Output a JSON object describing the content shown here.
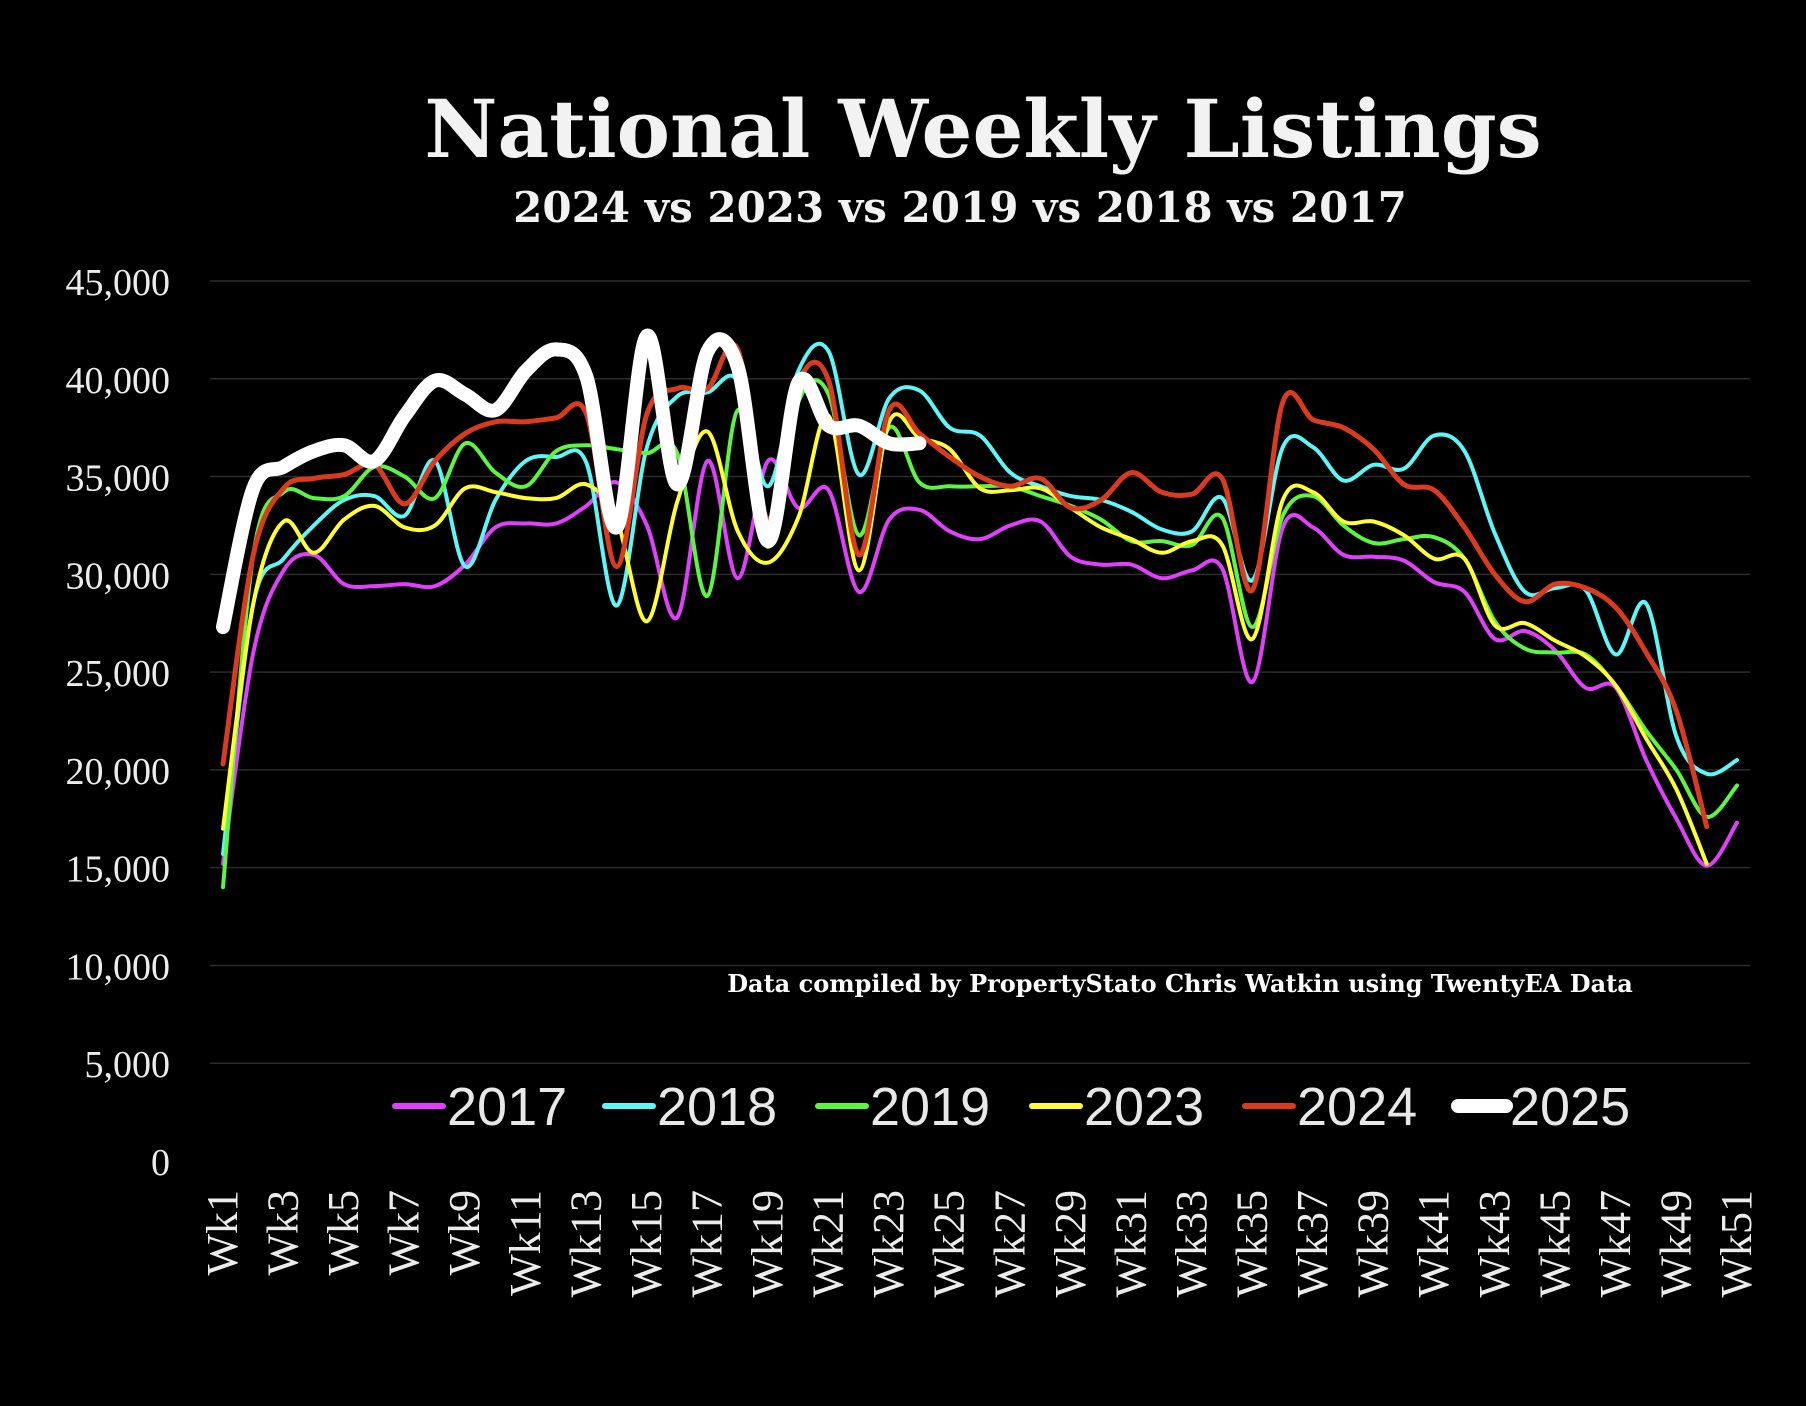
{
  "chart_data": {
    "type": "line",
    "title": "National Weekly Listings",
    "subtitle": "2024 vs 2023 vs 2019 vs 2018 vs 2017",
    "annotation": "Data compiled by PropertyStato Chris Watkin using TwentyEA Data",
    "xlabel": "",
    "ylabel": "",
    "ylim": [
      0,
      45000
    ],
    "yticks": [
      0,
      5000,
      10000,
      15000,
      20000,
      25000,
      30000,
      35000,
      40000,
      45000
    ],
    "ytick_labels": [
      "0",
      "5,000",
      "10,000",
      "15,000",
      "20,000",
      "25,000",
      "30,000",
      "35,000",
      "40,000",
      "45,000"
    ],
    "grid": true,
    "legend": "bottom",
    "background": "#000000",
    "x_tick_labels": [
      "Wk1",
      "Wk3",
      "Wk5",
      "Wk7",
      "Wk9",
      "Wk11",
      "Wk13",
      "Wk15",
      "Wk17",
      "Wk19",
      "Wk21",
      "Wk23",
      "Wk25",
      "Wk27",
      "Wk29",
      "Wk31",
      "Wk33",
      "Wk35",
      "Wk37",
      "Wk39",
      "Wk41",
      "Wk43",
      "Wk45",
      "Wk47",
      "Wk49",
      "Wk51"
    ],
    "categories": [
      "Wk1",
      "Wk2",
      "Wk3",
      "Wk4",
      "Wk5",
      "Wk6",
      "Wk7",
      "Wk8",
      "Wk9",
      "Wk10",
      "Wk11",
      "Wk12",
      "Wk13",
      "Wk14",
      "Wk15",
      "Wk16",
      "Wk17",
      "Wk18",
      "Wk19",
      "Wk20",
      "Wk21",
      "Wk22",
      "Wk23",
      "Wk24",
      "Wk25",
      "Wk26",
      "Wk27",
      "Wk28",
      "Wk29",
      "Wk30",
      "Wk31",
      "Wk32",
      "Wk33",
      "Wk34",
      "Wk35",
      "Wk36",
      "Wk37",
      "Wk38",
      "Wk39",
      "Wk40",
      "Wk41",
      "Wk42",
      "Wk43",
      "Wk44",
      "Wk45",
      "Wk46",
      "Wk47",
      "Wk48",
      "Wk49",
      "Wk50",
      "Wk51"
    ],
    "series": [
      {
        "name": "2017",
        "color": "#e040fb",
        "width": 4,
        "values": [
          15200,
          26000,
          30200,
          31000,
          29500,
          29400,
          29500,
          29400,
          30500,
          32400,
          32600,
          32600,
          33500,
          34700,
          32500,
          27800,
          35800,
          29800,
          35800,
          33400,
          34300,
          29100,
          32800,
          33300,
          32200,
          31800,
          32500,
          32700,
          30900,
          30500,
          30500,
          29800,
          30200,
          30300,
          24500,
          32400,
          32400,
          31000,
          30900,
          30700,
          29600,
          29100,
          26700,
          27100,
          26100,
          24200,
          24200,
          20500,
          17500,
          15100,
          17300
        ]
      },
      {
        "name": "2018",
        "color": "#5df7f7",
        "width": 4,
        "values": [
          15700,
          28500,
          30800,
          32500,
          33800,
          34000,
          33000,
          35800,
          30400,
          33800,
          35800,
          36000,
          35700,
          28400,
          36500,
          39100,
          39300,
          39900,
          34500,
          40400,
          41400,
          35100,
          39000,
          39400,
          37500,
          37100,
          35200,
          34500,
          34000,
          33800,
          33200,
          32300,
          32200,
          33900,
          29700,
          36500,
          36500,
          34800,
          35600,
          35400,
          37100,
          36300,
          32100,
          29100,
          29300,
          29200,
          25900,
          28500,
          21700,
          19800,
          20500
        ]
      },
      {
        "name": "2019",
        "color": "#5cf542",
        "width": 4,
        "values": [
          14000,
          31000,
          34200,
          33900,
          34000,
          35500,
          35000,
          33900,
          36700,
          35200,
          34500,
          36300,
          36600,
          36400,
          36200,
          36200,
          28900,
          38400,
          31400,
          38800,
          39200,
          32000,
          37500,
          34700,
          34500,
          34500,
          34500,
          34000,
          33500,
          32800,
          31700,
          31700,
          31500,
          32900,
          27300,
          33000,
          34000,
          32500,
          31600,
          31800,
          31900,
          30800,
          27600,
          26200,
          26000,
          25900,
          24300,
          22000,
          20000,
          17600,
          19200
        ]
      },
      {
        "name": "2023",
        "color": "#ffff33",
        "width": 4,
        "values": [
          17000,
          28500,
          32700,
          31100,
          32800,
          33500,
          32400,
          32500,
          34400,
          34200,
          33900,
          33900,
          34600,
          32800,
          27600,
          33700,
          37300,
          32200,
          30600,
          32900,
          38100,
          30200,
          37800,
          37000,
          36400,
          34400,
          34300,
          34400,
          33400,
          32400,
          31800,
          31100,
          31700,
          31500,
          26700,
          33800,
          34200,
          32700,
          32700,
          32000,
          30800,
          30800,
          27400,
          27500,
          26600,
          25800,
          24300,
          21600,
          19000,
          15200,
          null
        ]
      },
      {
        "name": "2024",
        "color": "#d93a20",
        "width": 5,
        "values": [
          20300,
          31000,
          34400,
          34900,
          35100,
          35600,
          33600,
          35800,
          37200,
          37800,
          37800,
          38000,
          38200,
          30400,
          38200,
          39500,
          39500,
          41500,
          32800,
          39800,
          39900,
          31000,
          38400,
          37200,
          36000,
          35000,
          34500,
          34900,
          33400,
          33800,
          35200,
          34200,
          34100,
          34900,
          29200,
          38800,
          37900,
          37500,
          36400,
          34600,
          34300,
          32400,
          30000,
          28600,
          29500,
          29300,
          28300,
          26000,
          23000,
          17100,
          null
        ]
      },
      {
        "name": "2025",
        "color": "#ffffff",
        "width": 14,
        "values": [
          27300,
          34400,
          35500,
          36300,
          36600,
          35800,
          38100,
          39900,
          39200,
          38400,
          40400,
          41500,
          40100,
          32400,
          42200,
          34600,
          41400,
          40600,
          31700,
          39800,
          37600,
          37600,
          36700,
          36700,
          null,
          null,
          null,
          null,
          null,
          null,
          null,
          null,
          null,
          null,
          null,
          null,
          null,
          null,
          null,
          null,
          null,
          null,
          null,
          null,
          null,
          null,
          null,
          null,
          null,
          null,
          null
        ]
      }
    ]
  }
}
